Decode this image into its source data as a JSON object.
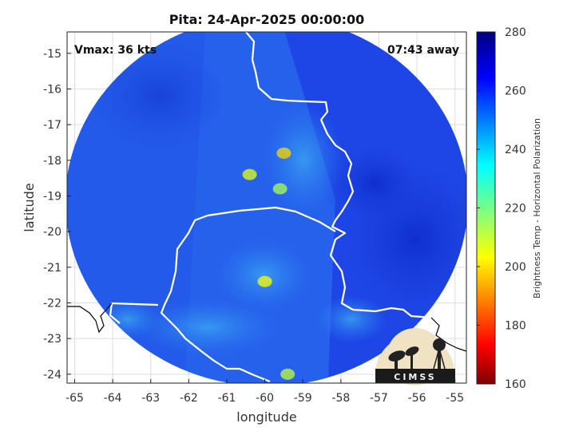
{
  "title": "Pita: 24-Apr-2025 00:00:00",
  "annotations": {
    "vmax": "Vmax: 36 kts",
    "away": "07:43 away"
  },
  "axes": {
    "xlabel": "longitude",
    "ylabel": "latitude",
    "x_ticks": [
      "-65",
      "-64",
      "-63",
      "-62",
      "-61",
      "-60",
      "-59",
      "-58",
      "-57",
      "-56",
      "-55"
    ],
    "y_ticks": [
      "-15",
      "-16",
      "-17",
      "-18",
      "-19",
      "-20",
      "-21",
      "-22",
      "-23",
      "-24"
    ],
    "grid": true
  },
  "colorbar": {
    "label": "Brightness Temp - Horizontal Polarization",
    "ticks": [
      "160",
      "180",
      "200",
      "220",
      "240",
      "260",
      "280"
    ],
    "range": [
      160,
      280
    ],
    "colormap": "jet"
  },
  "logo": {
    "text": "CIMSS"
  },
  "colors": {
    "dominant_field": "#1e46e6",
    "warm_low": "#800000",
    "cold_high": "#00007f",
    "boundary_white": "#ffffff",
    "coast_black": "#000000"
  },
  "chart_data": {
    "type": "heatmap",
    "title": "Pita: 24-Apr-2025 00:00:00",
    "xlabel": "longitude",
    "ylabel": "latitude",
    "xlim": [
      -65.2,
      -54.7
    ],
    "ylim": [
      -24.25,
      -14.4
    ],
    "value_range": [
      160,
      280
    ],
    "colorbar_label": "Brightness Temp - Horizontal Polarization",
    "swath_center": {
      "lon": -59.95,
      "lat": -19.3
    },
    "features": [
      {
        "lon": -59.6,
        "lat": -18.8,
        "value": 225
      },
      {
        "lon": -60.4,
        "lat": -18.4,
        "value": 232
      },
      {
        "lon": -60.0,
        "lat": -21.4,
        "value": 235
      },
      {
        "lon": -59.4,
        "lat": -24.0,
        "value": 228
      },
      {
        "lon": -59.5,
        "lat": -17.8,
        "value": 240
      }
    ]
  }
}
